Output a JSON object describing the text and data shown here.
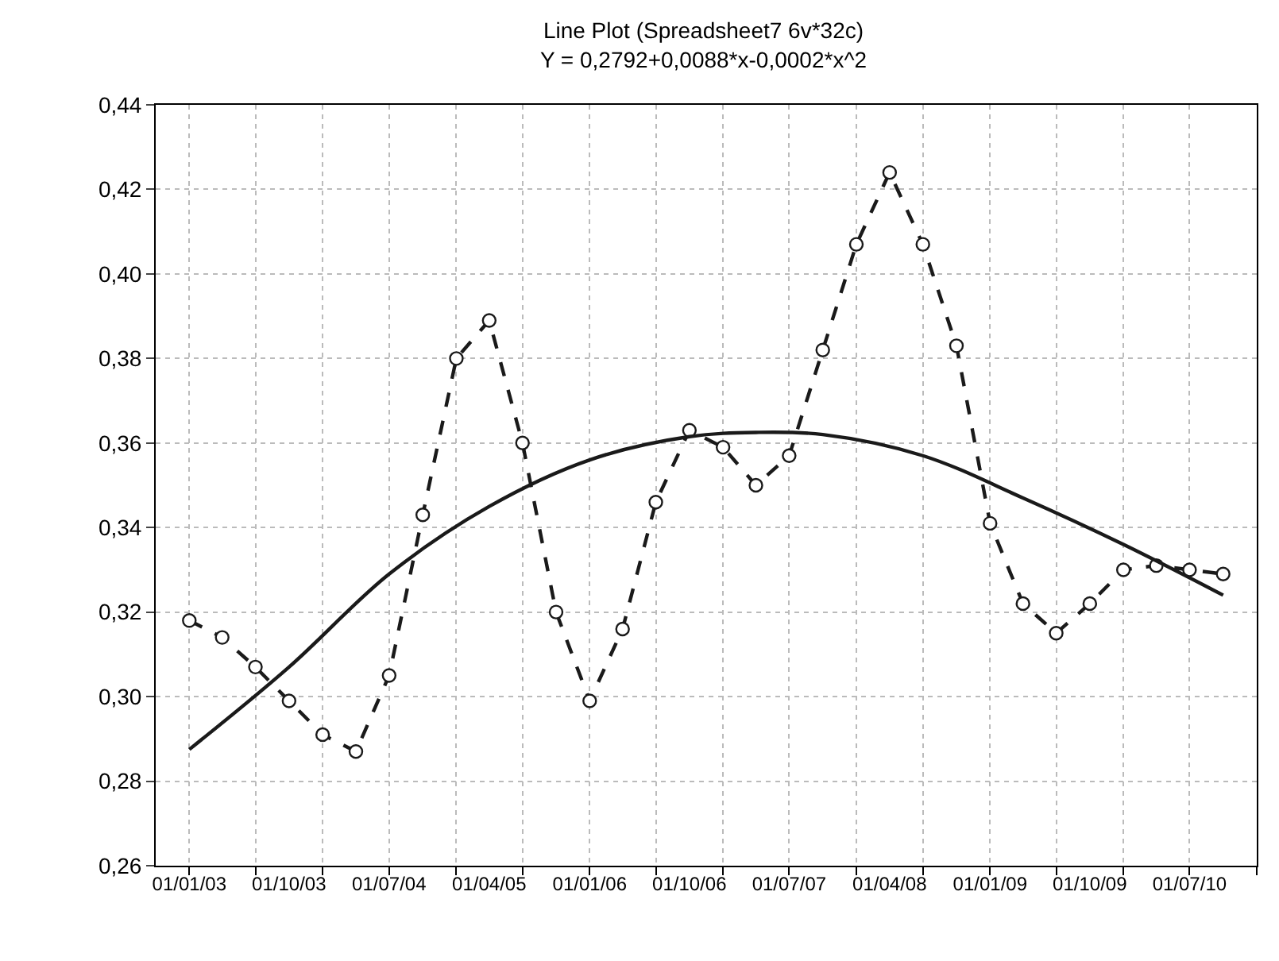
{
  "chart_data": {
    "type": "line",
    "title": "Line Plot (Spreadsheet7 6v*32c)",
    "subtitle": "Y = 0,2792+0,0088*x-0,0002*x^2",
    "x": [
      "2003-01",
      "2003-04",
      "2003-07",
      "2003-10",
      "2004-01",
      "2004-04",
      "2004-07",
      "2004-10",
      "2005-01",
      "2005-04",
      "2005-07",
      "2005-10",
      "2006-01",
      "2006-04",
      "2006-07",
      "2006-10",
      "2007-01",
      "2007-04",
      "2007-07",
      "2007-10",
      "2008-01",
      "2008-04",
      "2008-07",
      "2008-10",
      "2009-01",
      "2009-04",
      "2009-07",
      "2009-10",
      "2010-01",
      "2010-04",
      "2010-07",
      "2010-10"
    ],
    "series": [
      {
        "color": "#1a1a1a",
        "marker": "circle",
        "line_style": "dashed",
        "values": [
          0.318,
          0.314,
          0.307,
          0.299,
          0.291,
          0.287,
          0.305,
          0.343,
          0.38,
          0.389,
          0.36,
          0.32,
          0.299,
          0.316,
          0.346,
          0.363,
          0.359,
          0.35,
          0.357,
          0.382,
          0.407,
          0.424,
          0.407,
          0.383,
          0.341,
          0.322,
          0.315,
          0.322,
          0.33,
          0.331,
          0.33,
          0.329
        ]
      },
      {
        "type": "line",
        "color": "#1a1a1a",
        "marker": "none",
        "line_style": "solid",
        "x": [
          "2003-01",
          "2003-10",
          "2004-07",
          "2005-04",
          "2006-01",
          "2006-10",
          "2007-04",
          "2007-10",
          "2008-07",
          "2009-04",
          "2010-01",
          "2010-10"
        ],
        "values": [
          0.2875,
          0.307,
          0.329,
          0.345,
          0.356,
          0.3615,
          0.3625,
          0.362,
          0.357,
          0.347,
          0.336,
          0.324
        ]
      }
    ],
    "xlim": [
      "2002-10",
      "2011-01"
    ],
    "xticks": [
      {
        "value": "2003-01",
        "label": "01/01/03"
      },
      {
        "value": "2003-07",
        "label": null
      },
      {
        "value": "2003-10",
        "label": "01/10/03"
      },
      {
        "value": "2004-01",
        "label": null
      },
      {
        "value": "2004-07",
        "label": "01/07/04"
      },
      {
        "value": "2005-01",
        "label": null
      },
      {
        "value": "2005-04",
        "label": "01/04/05"
      },
      {
        "value": "2005-07",
        "label": null
      },
      {
        "value": "2006-01",
        "label": "01/01/06"
      },
      {
        "value": "2006-07",
        "label": null
      },
      {
        "value": "2006-10",
        "label": "01/10/06"
      },
      {
        "value": "2007-01",
        "label": null
      },
      {
        "value": "2007-07",
        "label": "01/07/07"
      },
      {
        "value": "2008-01",
        "label": null
      },
      {
        "value": "2008-04",
        "label": "01/04/08"
      },
      {
        "value": "2008-07",
        "label": null
      },
      {
        "value": "2009-01",
        "label": "01/01/09"
      },
      {
        "value": "2009-07",
        "label": null
      },
      {
        "value": "2009-10",
        "label": "01/10/09"
      },
      {
        "value": "2010-01",
        "label": null
      },
      {
        "value": "2010-07",
        "label": "01/07/10"
      },
      {
        "value": "2011-01",
        "label": null
      }
    ],
    "ylim": [
      0.26,
      0.44
    ],
    "yticks": [
      {
        "value": 0.26,
        "label": "0,26"
      },
      {
        "value": 0.28,
        "label": "0,28"
      },
      {
        "value": 0.3,
        "label": "0,30"
      },
      {
        "value": 0.32,
        "label": "0,32"
      },
      {
        "value": 0.34,
        "label": "0,34"
      },
      {
        "value": 0.36,
        "label": "0,36"
      },
      {
        "value": 0.38,
        "label": "0,38"
      },
      {
        "value": 0.4,
        "label": "0,40"
      },
      {
        "value": 0.42,
        "label": "0,42"
      },
      {
        "value": 0.44,
        "label": "0,44"
      }
    ],
    "grid": true
  }
}
